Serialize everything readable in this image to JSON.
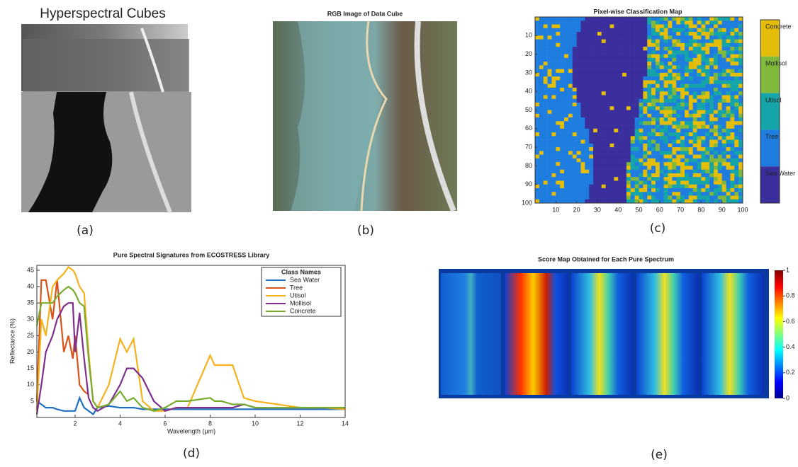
{
  "figure": {
    "captions": [
      "(a)",
      "(b)",
      "(c)",
      "(d)",
      "(e)"
    ],
    "panel_a": {
      "title": "Hyperspectral Cubes"
    },
    "panel_b": {
      "title": "RGB Image of Data Cube"
    },
    "panel_c": {
      "title": "Pixel-wise Classification Map",
      "xlim": [
        0,
        100
      ],
      "ylim": [
        0,
        100
      ],
      "xticks": [
        10,
        20,
        30,
        40,
        50,
        60,
        70,
        80,
        90,
        100
      ],
      "yticks": [
        10,
        20,
        30,
        40,
        50,
        60,
        70,
        80,
        90,
        100
      ],
      "classes": [
        {
          "name": "Concrete",
          "color": "#e3bd0a"
        },
        {
          "name": "Mollisol",
          "color": "#7fb83a"
        },
        {
          "name": "Utisol",
          "color": "#15a5a8"
        },
        {
          "name": "Tree",
          "color": "#1f7de0"
        },
        {
          "name": "Sea Water",
          "color": "#3b2f9e"
        }
      ]
    },
    "panel_e": {
      "title": "Score Map Obtained for Each Pure Spectrum",
      "clim": [
        0,
        1
      ],
      "cticks": [
        0,
        0.2,
        0.4,
        0.6,
        0.8,
        1
      ]
    }
  },
  "chart_data": {
    "type": "line",
    "title": "Pure Spectral Signatures from ECOSTRESS Library",
    "x_label": "Wavelength (μm)",
    "y_label": "Reflectance (%)",
    "legend_title": "Class Names",
    "legend": "upper right",
    "x": [
      0.3,
      0.5,
      0.7,
      1,
      1.2,
      1.5,
      1.7,
      1.9,
      2,
      2.2,
      2.4,
      2.6,
      2.8,
      3,
      3.5,
      4,
      4.3,
      4.6,
      5,
      5.5,
      6,
      6.5,
      7,
      8,
      8.2,
      8.5,
      9,
      9.5,
      10,
      11,
      12,
      13,
      14
    ],
    "xlim": [
      0.3,
      14
    ],
    "ylim": [
      0,
      46.5
    ],
    "xticks": [
      2,
      4,
      6,
      8,
      10,
      12,
      14
    ],
    "yticks": [
      5,
      10,
      15,
      20,
      25,
      30,
      35,
      40,
      45
    ],
    "series": [
      {
        "name": "Sea Water",
        "color": "#1f6fc0",
        "values": [
          5,
          4,
          3,
          3,
          2.5,
          2,
          2,
          2,
          2,
          6,
          3,
          2,
          1,
          3,
          3.5,
          3,
          3,
          3,
          2.5,
          2.5,
          2.5,
          2.5,
          2.5,
          2.5,
          2.5,
          2.5,
          2.5,
          2.5,
          2.5,
          2.5,
          2.5,
          2.5,
          2.5
        ]
      },
      {
        "name": "Tree",
        "color": "#d95319",
        "values": [
          5,
          42,
          42,
          30,
          42,
          20,
          25,
          18,
          25,
          10,
          8,
          7,
          null,
          null,
          null,
          null,
          null,
          null,
          null,
          null,
          null,
          null,
          null,
          null,
          null,
          null,
          null,
          null,
          null,
          null,
          null,
          null,
          null
        ]
      },
      {
        "name": "Utisol",
        "color": "#f5b21c",
        "values": [
          2,
          30,
          25,
          40,
          42,
          44,
          46,
          45,
          44,
          40,
          38,
          20,
          5,
          3,
          10,
          24,
          20,
          24,
          5,
          2,
          2,
          3,
          3,
          19,
          16,
          16,
          16,
          6,
          5,
          4,
          3,
          3,
          2.5
        ]
      },
      {
        "name": "Mollisol",
        "color": "#7e2f8e",
        "values": [
          1,
          10,
          20,
          25,
          30,
          34,
          35,
          35,
          20,
          32,
          18,
          6,
          3,
          2,
          4,
          10,
          15,
          15,
          12,
          5,
          2,
          3,
          3,
          3,
          3,
          3,
          3,
          4,
          3,
          3,
          3,
          3,
          3
        ]
      },
      {
        "name": "Concrete",
        "color": "#77ac30",
        "values": [
          28,
          35,
          35,
          35,
          37,
          39,
          40,
          39,
          38,
          35,
          34,
          18,
          5,
          3,
          4,
          8,
          5,
          6,
          3,
          2,
          3,
          5,
          5,
          6,
          5,
          5,
          4,
          4,
          3,
          3,
          3,
          3,
          3
        ]
      }
    ]
  }
}
